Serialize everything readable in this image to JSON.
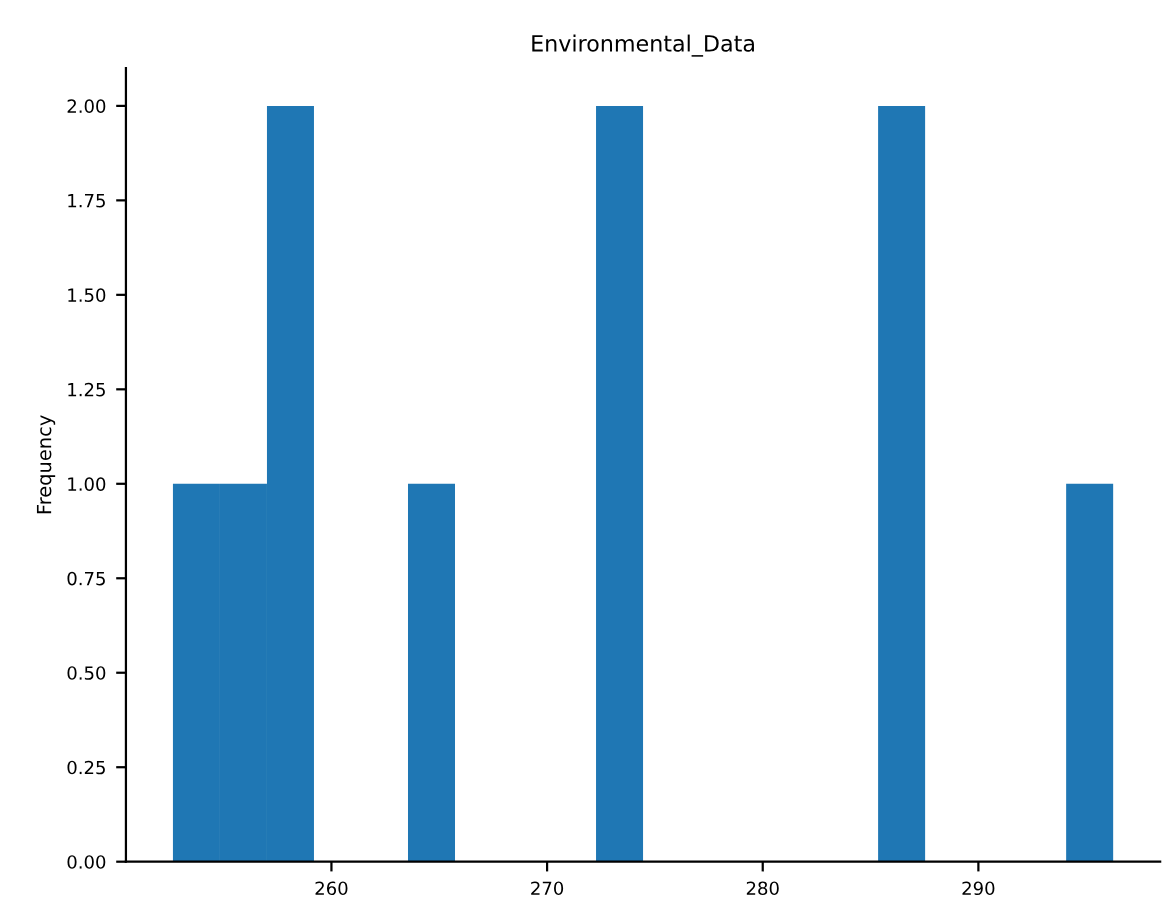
{
  "chart_data": {
    "type": "histogram",
    "title": "Environmental_Data",
    "ylabel": "Frequency",
    "bins": [
      252.65,
      254.83,
      257.01,
      259.19,
      261.37,
      263.55,
      265.73,
      267.91,
      270.09,
      272.27,
      274.45,
      276.63,
      278.81,
      280.99,
      283.17,
      285.35,
      287.53,
      289.71,
      291.89,
      294.07,
      296.25
    ],
    "values": [
      1,
      1,
      2,
      0,
      0,
      1,
      0,
      0,
      0,
      2,
      0,
      0,
      0,
      0,
      0,
      2,
      0,
      0,
      0,
      1
    ],
    "color": "#1f77b4",
    "xlim": [
      250.47,
      298.43
    ],
    "xticks": [
      260,
      270,
      280,
      290
    ],
    "ylim": [
      0,
      2.1
    ],
    "yticks": [
      {
        "value": 0,
        "label": "0.00"
      },
      {
        "value": 0.25,
        "label": "0.25"
      },
      {
        "value": 0.5,
        "label": "0.50"
      },
      {
        "value": 0.75,
        "label": "0.75"
      },
      {
        "value": 1,
        "label": "1.00"
      },
      {
        "value": 1.25,
        "label": "1.25"
      },
      {
        "value": 1.5,
        "label": "1.50"
      },
      {
        "value": 1.75,
        "label": "1.75"
      },
      {
        "value": 2,
        "label": "2.00"
      }
    ],
    "grid": false
  }
}
